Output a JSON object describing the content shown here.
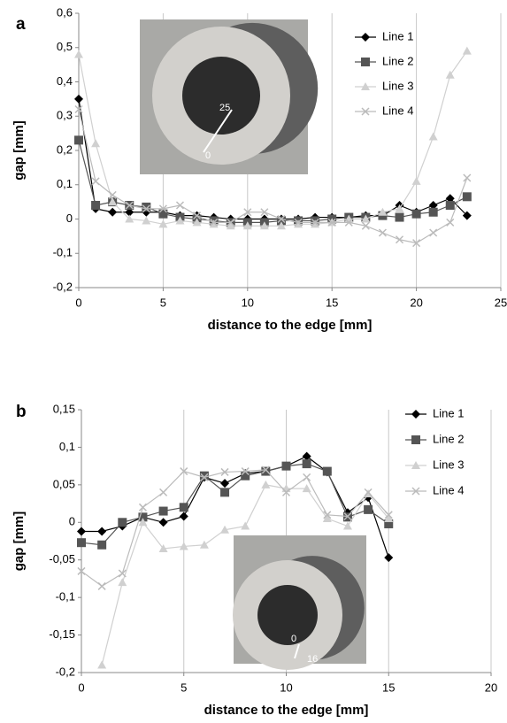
{
  "chart_data": [
    {
      "type": "line",
      "panel_label": "a",
      "x_label": "distance to the edge [mm]",
      "y_label": "gap [mm]",
      "x": [
        0,
        1,
        2,
        3,
        4,
        5,
        6,
        7,
        8,
        9,
        10,
        11,
        12,
        13,
        14,
        15,
        16,
        17,
        18,
        19,
        20,
        21,
        22,
        23
      ],
      "series": [
        {
          "name": "Line 1",
          "color": "#000000",
          "marker": "diamond",
          "values": [
            0.35,
            0.03,
            0.02,
            0.02,
            0.02,
            0.02,
            0.01,
            0.01,
            0.005,
            0,
            0,
            0,
            0,
            0,
            0.005,
            0.005,
            0.005,
            0.01,
            0.01,
            0.04,
            0.02,
            0.04,
            0.06,
            0.01
          ]
        },
        {
          "name": "Line 2",
          "color": "#555555",
          "marker": "square",
          "values": [
            0.23,
            0.04,
            0.05,
            0.04,
            0.035,
            0.015,
            0.005,
            0,
            -0.005,
            -0.01,
            -0.01,
            -0.01,
            -0.005,
            -0.005,
            -0.005,
            0,
            0.005,
            0.005,
            0.01,
            0.005,
            0.015,
            0.02,
            0.04,
            0.065
          ]
        },
        {
          "name": "Line 3",
          "color": "#d0d0d0",
          "marker": "triangle",
          "values": [
            0.48,
            0.22,
            0.05,
            0,
            -0.005,
            -0.015,
            -0.005,
            -0.01,
            -0.015,
            -0.02,
            -0.02,
            -0.02,
            -0.02,
            -0.015,
            -0.015,
            -0.01,
            0,
            0,
            0.02,
            0.03,
            0.11,
            0.24,
            0.42,
            0.49
          ]
        },
        {
          "name": "Line 4",
          "color": "#bbbbbb",
          "marker": "x",
          "values": [
            0.32,
            0.11,
            0.07,
            0.04,
            0.03,
            0.03,
            0.04,
            0.01,
            -0.01,
            -0.01,
            0.02,
            0.02,
            0,
            -0.01,
            -0.01,
            -0.01,
            -0.01,
            -0.02,
            -0.04,
            -0.06,
            -0.07,
            -0.04,
            -0.01,
            0.12
          ]
        }
      ],
      "xlim": [
        0,
        25
      ],
      "xticks": [
        0,
        5,
        10,
        15,
        20,
        25
      ],
      "ylim": [
        -0.2,
        0.6
      ],
      "yticks": [
        {
          "value": -0.2,
          "label": "-0,2"
        },
        {
          "value": -0.1,
          "label": "-0,1"
        },
        0,
        {
          "value": 0.1,
          "label": "0,1"
        },
        {
          "value": 0.2,
          "label": "0,2"
        },
        {
          "value": 0.3,
          "label": "0,3"
        },
        {
          "value": 0.4,
          "label": "0,4"
        },
        {
          "value": 0.5,
          "label": "0,5"
        },
        {
          "value": 0.6,
          "label": "0,6"
        }
      ],
      "grid": "x",
      "legend": "top-right",
      "inset_labels": [
        "25",
        "0"
      ]
    },
    {
      "type": "line",
      "panel_label": "b",
      "x_label": "distance to the edge [mm]",
      "y_label": "gap [mm]",
      "x": [
        0,
        1,
        2,
        3,
        4,
        5,
        6,
        7,
        8,
        9,
        10,
        11,
        12,
        13,
        14,
        15
      ],
      "series": [
        {
          "name": "Line 1",
          "color": "#000000",
          "marker": "diamond",
          "values": [
            -0.012,
            -0.012,
            -0.005,
            0.007,
            0,
            0.008,
            0.06,
            0.052,
            0.065,
            0.068,
            0.075,
            0.088,
            0.067,
            0.013,
            0.033,
            -0.047
          ]
        },
        {
          "name": "Line 2",
          "color": "#555555",
          "marker": "square",
          "values": [
            -0.027,
            -0.03,
            0,
            0.007,
            0.015,
            0.02,
            0.062,
            0.04,
            0.062,
            0.068,
            0.075,
            0.078,
            0.068,
            0.007,
            0.017,
            -0.002
          ]
        },
        {
          "name": "Line 3",
          "color": "#d0d0d0",
          "marker": "triangle",
          "values": [
            null,
            -0.19,
            -0.08,
            0,
            -0.035,
            -0.032,
            -0.03,
            -0.01,
            -0.005,
            0.05,
            0.045,
            0.045,
            0.005,
            -0.005,
            0.038,
            0.005
          ]
        },
        {
          "name": "Line 4",
          "color": "#bbbbbb",
          "marker": "x",
          "values": [
            -0.065,
            -0.085,
            -0.068,
            0.02,
            0.04,
            0.068,
            0.06,
            0.067,
            0.068,
            0.07,
            0.04,
            0.06,
            0.01,
            0.008,
            0.04,
            0.01
          ]
        }
      ],
      "xlim": [
        0,
        20
      ],
      "xticks": [
        0,
        5,
        10,
        15,
        20
      ],
      "ylim": [
        -0.2,
        0.15
      ],
      "yticks": [
        {
          "value": -0.2,
          "label": "-0,2"
        },
        {
          "value": -0.15,
          "label": "-0,15"
        },
        {
          "value": -0.1,
          "label": "-0,1"
        },
        {
          "value": -0.05,
          "label": "-0,05"
        },
        0,
        {
          "value": 0.05,
          "label": "0,05"
        },
        {
          "value": 0.1,
          "label": "0,1"
        },
        {
          "value": 0.15,
          "label": "0,15"
        }
      ],
      "grid": "x",
      "legend": "top-right",
      "inset_labels": [
        "0",
        "16"
      ]
    }
  ]
}
